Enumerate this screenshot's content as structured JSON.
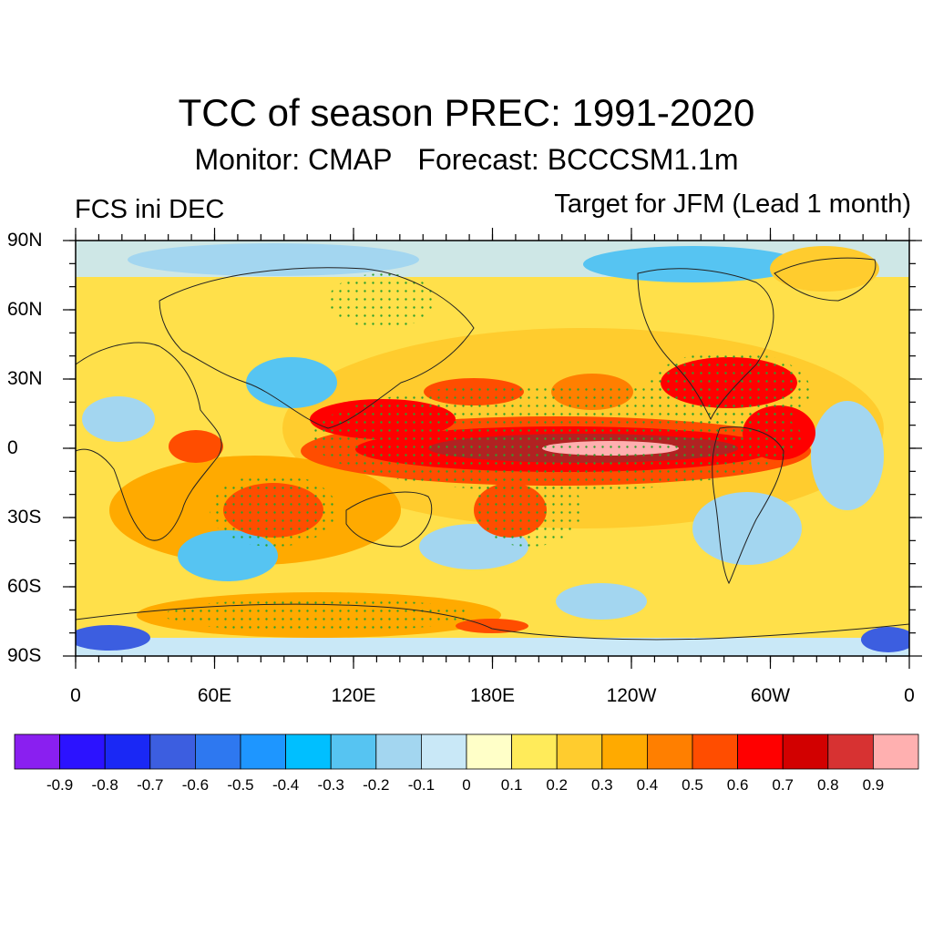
{
  "title": "TCC of season PREC: 1991-2020",
  "subtitle": {
    "monitor": "Monitor: CMAP",
    "forecast": "Forecast: BCCCSM1.1m"
  },
  "left_label": "FCS ini DEC",
  "right_label": "Target for JFM (Lead 1 month)",
  "lat_ticks": [
    "90N",
    "60N",
    "30N",
    "0",
    "30S",
    "60S",
    "90S"
  ],
  "lon_ticks": [
    "0",
    "60E",
    "120E",
    "180E",
    "120W",
    "60W",
    "0"
  ],
  "colorbar": {
    "labels": [
      "-0.9",
      "-0.8",
      "-0.7",
      "-0.6",
      "-0.5",
      "-0.4",
      "-0.3",
      "-0.2",
      "-0.1",
      "0",
      "0.1",
      "0.2",
      "0.3",
      "0.4",
      "0.5",
      "0.6",
      "0.7",
      "0.8",
      "0.9"
    ],
    "colors": [
      "#8a1ff0",
      "#2c12ff",
      "#1a28f5",
      "#3c5ee0",
      "#2e78f0",
      "#1e96ff",
      "#00bfff",
      "#56c4f2",
      "#a3d6f0",
      "#c9e8f7",
      "#ffffc8",
      "#ffeb5a",
      "#ffcc2e",
      "#ffaa00",
      "#ff7f00",
      "#ff4d00",
      "#ff0000",
      "#d20000",
      "#d73232",
      "#ffb0b0"
    ]
  }
}
